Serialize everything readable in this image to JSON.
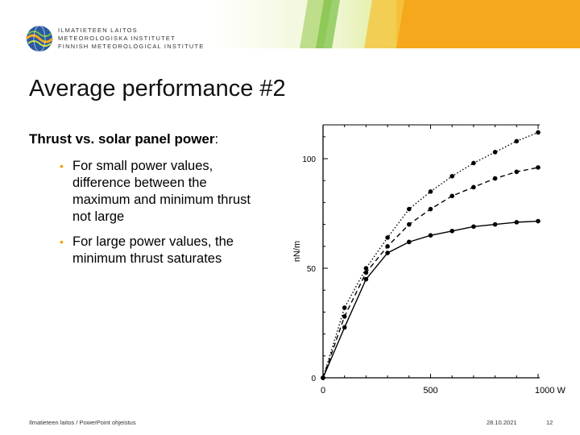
{
  "org": {
    "line1": "ILMATIETEEN LAITOS",
    "line2": "METEOROLOGISKA INSTITUTET",
    "line3": "FINNISH METEOROLOGICAL INSTITUTE"
  },
  "slide": {
    "title": "Average performance #2",
    "subtitle": "Thrust vs. solar panel power",
    "subtitle_colon": ":",
    "bullets": [
      "For small power values, difference between the maximum and minimum thrust not large",
      "For large power values, the minimum thrust saturates"
    ]
  },
  "footer": {
    "left": "Ilmatieteen laitos / PowerPoint ohjeistus",
    "date": "28.10.2021",
    "page": "12"
  },
  "colors": {
    "orange": "#f6a81c",
    "yellow_green": "#cfe03a",
    "green": "#7bc043",
    "bullet": "#f0a000"
  },
  "chart_data": {
    "type": "line",
    "xlabel": "",
    "ylabel": "nN/m",
    "x_tick_labels": [
      "0",
      "500",
      "1000 W"
    ],
    "y_tick_labels": [
      "0",
      "50",
      "100"
    ],
    "xlim": [
      0,
      1000
    ],
    "ylim": [
      0,
      115
    ],
    "series": [
      {
        "style": "dotted",
        "x": [
          0,
          100,
          200,
          300,
          400,
          500,
          600,
          700,
          800,
          900,
          1000
        ],
        "y": [
          0,
          32,
          50,
          64,
          77,
          85,
          92,
          98,
          103,
          108,
          112
        ]
      },
      {
        "style": "dashed",
        "x": [
          0,
          100,
          200,
          300,
          400,
          500,
          600,
          700,
          800,
          900,
          1000
        ],
        "y": [
          0,
          28,
          48,
          60,
          70,
          77,
          83,
          87,
          91,
          94,
          96
        ]
      },
      {
        "style": "solid",
        "x": [
          0,
          100,
          200,
          300,
          400,
          500,
          600,
          700,
          800,
          900,
          1000
        ],
        "y": [
          0,
          23,
          45,
          57,
          62,
          65,
          67,
          69,
          70,
          71,
          71.5
        ]
      }
    ]
  }
}
